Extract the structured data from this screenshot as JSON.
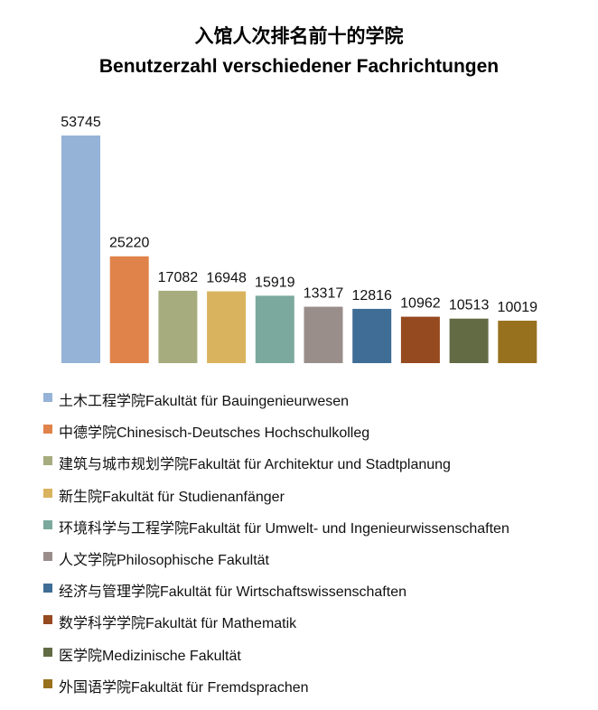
{
  "chart_data": {
    "type": "bar",
    "title": "入馆人次排名前十的学院",
    "subtitle": "Benutzerzahl verschiedener Fachrichtungen",
    "xlabel": "",
    "ylabel": "",
    "ylim": [
      0,
      53745
    ],
    "grid": false,
    "legend_position": "bottom",
    "categories": [
      "土木工程学院Fakultät für Bauingenieurwesen",
      "中德学院Chinesisch-Deutsches Hochschulkolleg",
      "建筑与城市规划学院Fakultät für Architektur und Stadtplanung",
      "新生院Fakultät für Studienanfänger",
      "环境科学与工程学院Fakultät für Umwelt- und Ingenieurwissenschaften",
      "人文学院Philosophische Fakultät",
      "经济与管理学院Fakultät für Wirtschaftswissenschaften",
      "数学科学学院Fakultät für Mathematik",
      "医学院Medizinische Fakultät",
      "外国语学院Fakultät für Fremdsprachen"
    ],
    "values": [
      53745,
      25220,
      17082,
      16948,
      15919,
      13317,
      12816,
      10962,
      10513,
      10019
    ],
    "colors": [
      "#95B3D7",
      "#E0834A",
      "#A6AC7E",
      "#D9B35E",
      "#7BA99D",
      "#9A8E8B",
      "#3F6D96",
      "#964A1F",
      "#636B45",
      "#98711F"
    ]
  }
}
